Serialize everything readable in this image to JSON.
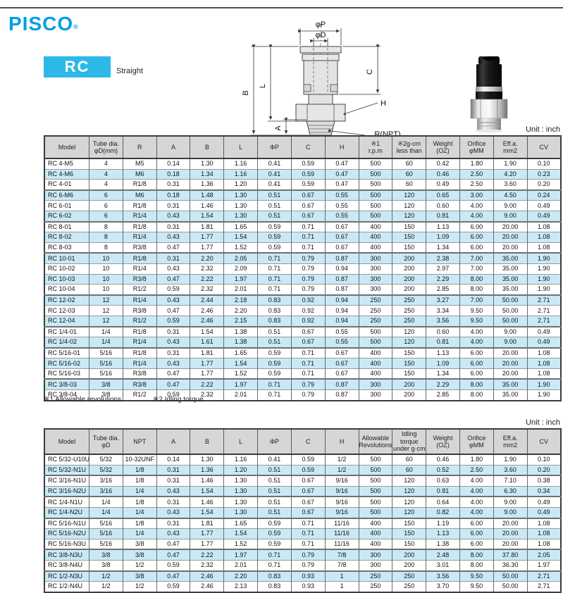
{
  "page": {
    "brand": "PISCO",
    "brand_mark": "®",
    "series": "RC",
    "series_type": "Straight",
    "unit_label": "Unit : inch",
    "footnote1": "※1 Allowable revolutions",
    "footnote2": "※2 Idling torque"
  },
  "diagram": {
    "labels": {
      "phi_p": "φP",
      "phi_d": "φD",
      "b": "B",
      "l": "L",
      "a": "A",
      "c": "C",
      "h": "H",
      "rnpt": "R(NPT)"
    }
  },
  "table1": {
    "headers": [
      "Model",
      "Tube dia.\nφD(mm)",
      "R",
      "A",
      "B",
      "L",
      "ΦP",
      "C",
      "H",
      "※1\nr.p.m",
      "※2g-cm\nless than",
      "Weight\n(OZ)",
      "Orifice\nφMM",
      "Eff.a.\nmm2",
      "CV"
    ],
    "rows": [
      {
        "sep": false,
        "cells": [
          "RC 4-M5",
          "4",
          "M5",
          "0.14",
          "1.30",
          "1.16",
          "0.41",
          "0.59",
          "0.47",
          "500",
          "60",
          "0.42",
          "1.80",
          "1.90",
          "0.10"
        ]
      },
      {
        "sep": false,
        "cells": [
          "RC 4-M6",
          "4",
          "M6",
          "0.18",
          "1.34",
          "1.16",
          "0.41",
          "0.59",
          "0.47",
          "500",
          "60",
          "0.46",
          "2.50",
          "4.20",
          "0.23"
        ]
      },
      {
        "sep": false,
        "cells": [
          "RC 4-01",
          "4",
          "R1/8",
          "0.31",
          "1.36",
          "1.20",
          "0.41",
          "0.59",
          "0.47",
          "500",
          "60",
          "0.49",
          "2.50",
          "3.60",
          "0.20"
        ]
      },
      {
        "sep": true,
        "cells": [
          "RC 6-M6",
          "6",
          "M6",
          "0.18",
          "1.48",
          "1.30",
          "0.51",
          "0.67",
          "0.55",
          "500",
          "120",
          "0.65",
          "3.00",
          "4.50",
          "0.24"
        ]
      },
      {
        "sep": false,
        "cells": [
          "RC 6-01",
          "6",
          "R1/8",
          "0.31",
          "1.46",
          "1.30",
          "0.51",
          "0.67",
          "0.55",
          "500",
          "120",
          "0.60",
          "4.00",
          "9.00",
          "0.49"
        ]
      },
      {
        "sep": false,
        "cells": [
          "RC 6-02",
          "6",
          "R1/4",
          "0.43",
          "1.54",
          "1.30",
          "0.51",
          "0.67",
          "0.55",
          "500",
          "120",
          "0.81",
          "4.00",
          "9.00",
          "0.49"
        ]
      },
      {
        "sep": true,
        "cells": [
          "RC 8-01",
          "8",
          "R1/8",
          "0.31",
          "1.81",
          "1.65",
          "0.59",
          "0.71",
          "0.67",
          "400",
          "150",
          "1.13",
          "6.00",
          "20.00",
          "1.08"
        ]
      },
      {
        "sep": false,
        "cells": [
          "RC 8-02",
          "8",
          "R1/4",
          "0.43",
          "1.77",
          "1.54",
          "0.59",
          "0.71",
          "0.67",
          "400",
          "150",
          "1.09",
          "6.00",
          "20.00",
          "1.08"
        ]
      },
      {
        "sep": false,
        "cells": [
          "RC 8-03",
          "8",
          "R3/8",
          "0.47",
          "1.77",
          "1.52",
          "0.59",
          "0.71",
          "0.67",
          "400",
          "150",
          "1.34",
          "6.00",
          "20.00",
          "1.08"
        ]
      },
      {
        "sep": true,
        "cells": [
          "RC 10-01",
          "10",
          "R1/8",
          "0.31",
          "2.20",
          "2.05",
          "0.71",
          "0.79",
          "0.87",
          "300",
          "200",
          "2.38",
          "7.00",
          "35.00",
          "1.90"
        ]
      },
      {
        "sep": false,
        "cells": [
          "RC 10-02",
          "10",
          "R1/4",
          "0.43",
          "2.32",
          "2.09",
          "0.71",
          "0.79",
          "0.94",
          "300",
          "200",
          "2.97",
          "7.00",
          "35.00",
          "1.90"
        ]
      },
      {
        "sep": false,
        "cells": [
          "RC 10-03",
          "10",
          "R3/8",
          "0.47",
          "2.22",
          "1.97",
          "0.71",
          "0.79",
          "0.87",
          "300",
          "200",
          "2.29",
          "8.00",
          "35.00",
          "1.90"
        ]
      },
      {
        "sep": false,
        "cells": [
          "RC 10-04",
          "10",
          "R1/2",
          "0.59",
          "2.32",
          "2.01",
          "0.71",
          "0.79",
          "0.87",
          "300",
          "200",
          "2.85",
          "8.00",
          "35.00",
          "1.90"
        ]
      },
      {
        "sep": true,
        "cells": [
          "RC 12-02",
          "12",
          "R1/4",
          "0.43",
          "2.44",
          "2.18",
          "0.83",
          "0.92",
          "0.94",
          "250",
          "250",
          "3.27",
          "7.00",
          "50.00",
          "2.71"
        ]
      },
      {
        "sep": false,
        "cells": [
          "RC 12-03",
          "12",
          "R3/8",
          "0.47",
          "2.46",
          "2.20",
          "0.83",
          "0.92",
          "0.94",
          "250",
          "250",
          "3.34",
          "9.50",
          "50.00",
          "2.71"
        ]
      },
      {
        "sep": false,
        "cells": [
          "RC 12-04",
          "12",
          "R1/2",
          "0.59",
          "2.46",
          "2.15",
          "0.83",
          "0.92",
          "0.94",
          "250",
          "250",
          "3.56",
          "9.50",
          "50.00",
          "2.71"
        ]
      },
      {
        "sep": true,
        "cells": [
          "RC 1/4-01",
          "1/4",
          "R1/8",
          "0.31",
          "1.54",
          "1.38",
          "0.51",
          "0.67",
          "0.55",
          "500",
          "120",
          "0.60",
          "4.00",
          "9.00",
          "0.49"
        ]
      },
      {
        "sep": false,
        "cells": [
          "RC 1/4-02",
          "1/4",
          "R1/4",
          "0.43",
          "1.61",
          "1.38",
          "0.51",
          "0.67",
          "0.55",
          "500",
          "120",
          "0.81",
          "4.00",
          "9.00",
          "0.49"
        ]
      },
      {
        "sep": true,
        "cells": [
          "RC 5/16-01",
          "5/16",
          "R1/8",
          "0.31",
          "1.81",
          "1.65",
          "0.59",
          "0.71",
          "0.67",
          "400",
          "150",
          "1.13",
          "6.00",
          "20.00",
          "1.08"
        ]
      },
      {
        "sep": false,
        "cells": [
          "RC 5/16-02",
          "5/16",
          "R1/4",
          "0.43",
          "1.77",
          "1.54",
          "0.59",
          "0.71",
          "0.67",
          "400",
          "150",
          "1.09",
          "6.00",
          "20.00",
          "1.08"
        ]
      },
      {
        "sep": false,
        "cells": [
          "RC 5/16-03",
          "5/16",
          "R3/8",
          "0.47",
          "1.77",
          "1.52",
          "0.59",
          "0.71",
          "0.67",
          "400",
          "150",
          "1.34",
          "6.00",
          "20.00",
          "1.08"
        ]
      },
      {
        "sep": true,
        "cells": [
          "RC 3/8-03",
          "3/8",
          "R3/8",
          "0.47",
          "2.22",
          "1.97",
          "0.71",
          "0.79",
          "0.87",
          "300",
          "200",
          "2.29",
          "8.00",
          "35.00",
          "1.90"
        ]
      },
      {
        "sep": false,
        "cells": [
          "RC 3/8-04",
          "3/8",
          "R1/2",
          "0.59",
          "2.32",
          "2.01",
          "0.71",
          "0.79",
          "0.87",
          "300",
          "200",
          "2.85",
          "8.00",
          "35.00",
          "1.90"
        ]
      }
    ]
  },
  "table2": {
    "headers": [
      "Model",
      "Tube dia.\nφD",
      "NPT",
      "A",
      "B",
      "L",
      "ΦP",
      "C",
      "H",
      "Allowable\nRevolutions",
      "Idling torque\nunder g·cm",
      "Weight\n(OZ)",
      "Orifice\nφMM",
      "Eff.a.\nmm2",
      "CV"
    ],
    "rows": [
      {
        "sep": false,
        "cells": [
          "RC 5/32-U10U",
          "5/32",
          "10-32UNF",
          "0.14",
          "1.30",
          "1.16",
          "0.41",
          "0.59",
          "1/2",
          "500",
          "60",
          "0.46",
          "1.80",
          "1.90",
          "0.10"
        ]
      },
      {
        "sep": false,
        "cells": [
          "RC 5/32-N1U",
          "5/32",
          "1/8",
          "0.31",
          "1.36",
          "1.20",
          "0.51",
          "0.59",
          "1/2",
          "500",
          "60",
          "0.52",
          "2.50",
          "3.60",
          "0.20"
        ]
      },
      {
        "sep": true,
        "cells": [
          "RC 3/16-N1U",
          "3/16",
          "1/8",
          "0.31",
          "1.46",
          "1.30",
          "0.51",
          "0.67",
          "9/16",
          "500",
          "120",
          "0.63",
          "4.00",
          "7.10",
          "0.38"
        ]
      },
      {
        "sep": false,
        "cells": [
          "RC 3/16-N2U",
          "3/16",
          "1/4",
          "0.43",
          "1.54",
          "1.30",
          "0.51",
          "0.67",
          "9/16",
          "500",
          "120",
          "0.81",
          "4.00",
          "6.30",
          "0.34"
        ]
      },
      {
        "sep": true,
        "cells": [
          "RC 1/4-N1U",
          "1/4",
          "1/8",
          "0.31",
          "1.46",
          "1.30",
          "0.51",
          "0.67",
          "9/16",
          "500",
          "120",
          "0.64",
          "4.00",
          "9.00",
          "0.49"
        ]
      },
      {
        "sep": false,
        "cells": [
          "RC 1/4-N2U",
          "1/4",
          "1/4",
          "0.43",
          "1.54",
          "1.30",
          "0.51",
          "0.67",
          "9/16",
          "500",
          "120",
          "0.82",
          "4.00",
          "9.00",
          "0.49"
        ]
      },
      {
        "sep": true,
        "cells": [
          "RC 5/16-N1U",
          "5/16",
          "1/8",
          "0.31",
          "1.81",
          "1.65",
          "0.59",
          "0.71",
          "11/16",
          "400",
          "150",
          "1.19",
          "6.00",
          "20.00",
          "1.08"
        ]
      },
      {
        "sep": false,
        "cells": [
          "RC 5/16-N2U",
          "5/16",
          "1/4",
          "0.43",
          "1.77",
          "1.54",
          "0.59",
          "0.71",
          "11/16",
          "400",
          "150",
          "1.13",
          "6.00",
          "20.00",
          "1.08"
        ]
      },
      {
        "sep": false,
        "cells": [
          "RC 5/16-N3U",
          "5/16",
          "3/8",
          "0.47",
          "1.77",
          "1.52",
          "0.59",
          "0.71",
          "11/16",
          "400",
          "150",
          "1.38",
          "6.00",
          "20.00",
          "1.08"
        ]
      },
      {
        "sep": true,
        "cells": [
          "RC 3/8-N3U",
          "3/8",
          "3/8",
          "0.47",
          "2.22",
          "1.97",
          "0.71",
          "0.79",
          "7/8",
          "300",
          "200",
          "2.48",
          "8.00",
          "37.80",
          "2.05"
        ]
      },
      {
        "sep": false,
        "cells": [
          "RC 3/8-N4U",
          "3/8",
          "1/2",
          "0.59",
          "2.32",
          "2.01",
          "0.71",
          "0.79",
          "7/8",
          "300",
          "200",
          "3.01",
          "8.00",
          "36.30",
          "1.97"
        ]
      },
      {
        "sep": true,
        "cells": [
          "RC 1/2-N3U",
          "1/2",
          "3/8",
          "0.47",
          "2.46",
          "2.20",
          "0.83",
          "0.93",
          "1",
          "250",
          "250",
          "3.56",
          "9.50",
          "50.00",
          "2.71"
        ]
      },
      {
        "sep": false,
        "cells": [
          "RC 1/2-N4U",
          "1/2",
          "1/2",
          "0.59",
          "2.46",
          "2.13",
          "0.83",
          "0.93",
          "1",
          "250",
          "250",
          "3.70",
          "9.50",
          "50.00",
          "2.71"
        ]
      }
    ]
  }
}
